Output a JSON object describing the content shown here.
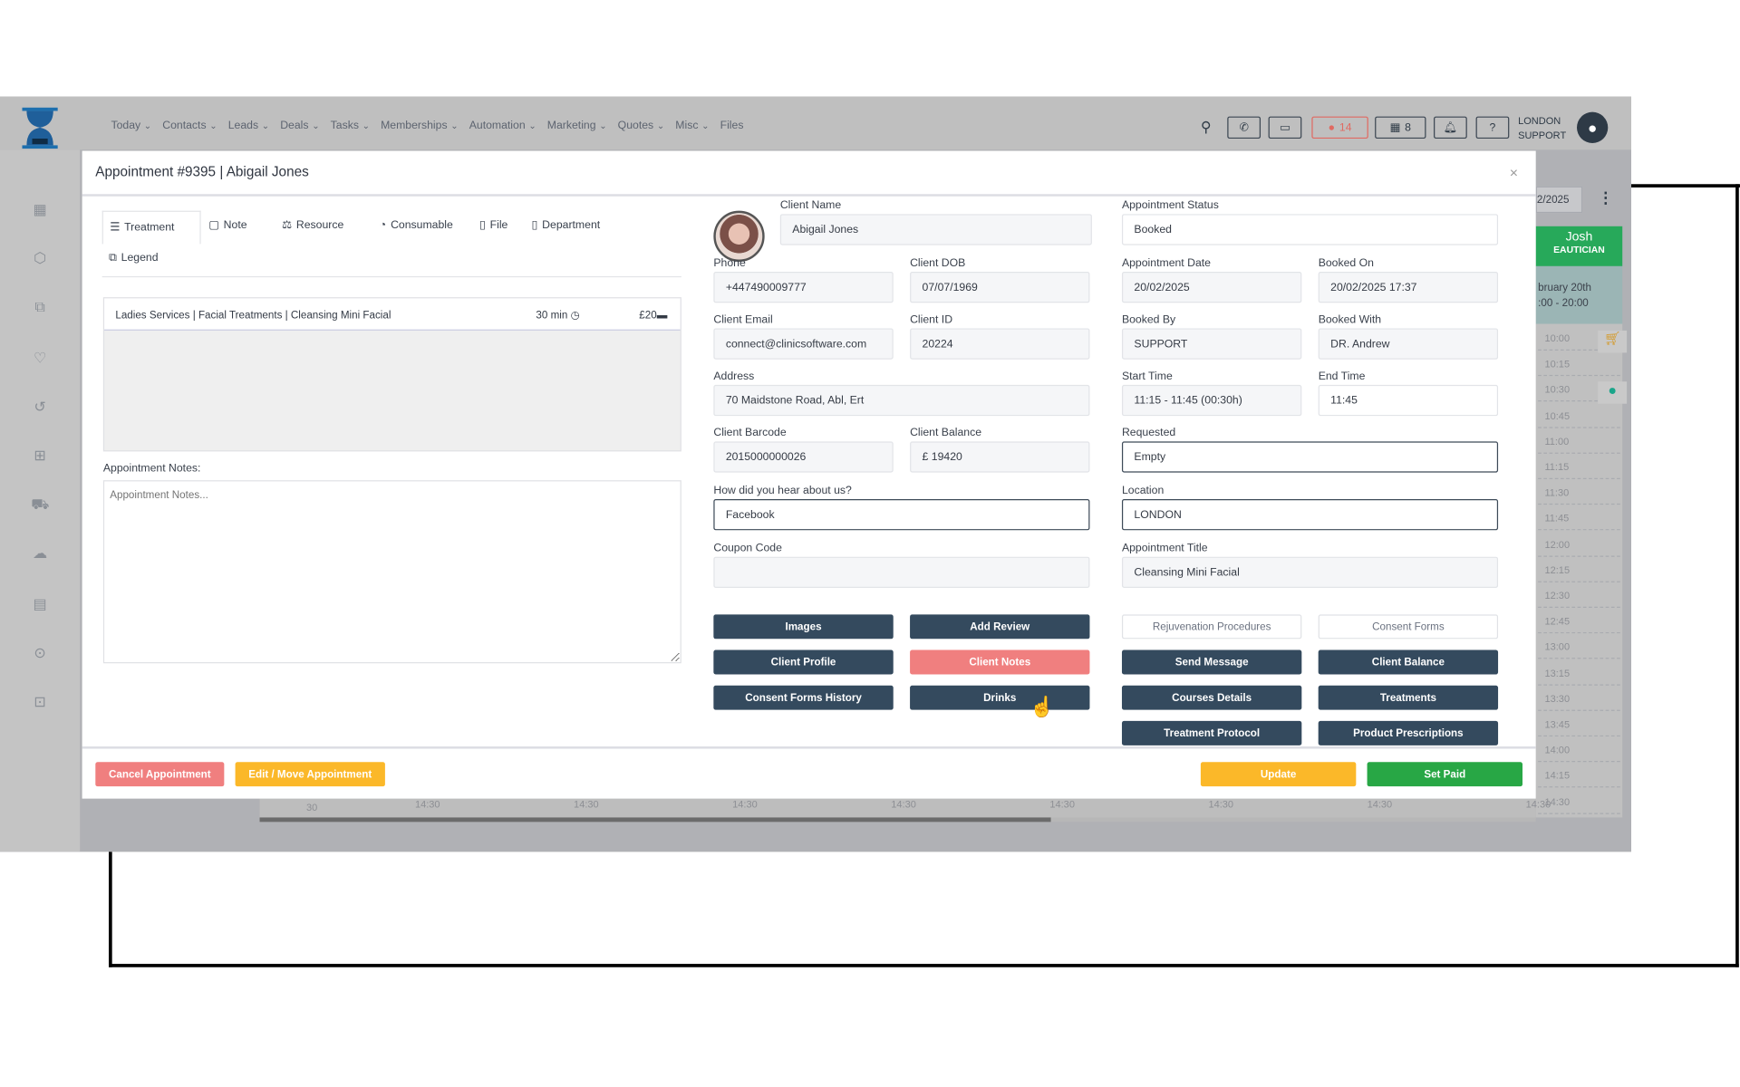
{
  "nav": {
    "items": [
      {
        "label": "Today"
      },
      {
        "label": "Contacts"
      },
      {
        "label": "Leads"
      },
      {
        "label": "Deals"
      },
      {
        "label": "Tasks"
      },
      {
        "label": "Memberships"
      },
      {
        "label": "Automation"
      },
      {
        "label": "Marketing"
      },
      {
        "label": "Quotes"
      },
      {
        "label": "Misc"
      },
      {
        "label": "Files"
      }
    ]
  },
  "topbar": {
    "messages_count": "14",
    "store_count": "8",
    "user_line1": "LONDON",
    "user_line2": "SUPPORT"
  },
  "calendar": {
    "date_partial": "2/2025",
    "staff_name": "Josh",
    "staff_role": "EAUTICIAN",
    "date_line": "bruary 20th",
    "hours": ":00 - 20:00",
    "times": [
      "10:00",
      "10:15",
      "10:30",
      "10:45",
      "11:00",
      "11:15",
      "11:30",
      "11:45",
      "12:00",
      "12:15",
      "12:30",
      "12:45",
      "13:00",
      "13:15",
      "13:30",
      "13:45",
      "14:00",
      "14:15",
      "14:30"
    ],
    "bottom_labels": [
      "30",
      "14:30",
      "14:30",
      "14:30",
      "14:30",
      "14:30",
      "14:30",
      "14:30",
      "14:30"
    ],
    "scroll_progress": 0.62
  },
  "modal": {
    "title": "Appointment #9395 | Abigail Jones",
    "close": "×",
    "tabs": [
      {
        "label": "Treatment"
      },
      {
        "label": "Note"
      },
      {
        "label": "Resource"
      },
      {
        "label": "Consumable"
      },
      {
        "label": "File"
      },
      {
        "label": "Department"
      },
      {
        "label": "Legend"
      }
    ],
    "treatment": {
      "name": "Ladies Services | Facial Treatments | Cleansing Mini Facial",
      "duration": "30 min",
      "price": "£20"
    },
    "notes": {
      "label": "Appointment Notes:",
      "placeholder": "Appointment Notes..."
    },
    "fields": {
      "client_name": {
        "label": "Client Name",
        "value": "Abigail Jones"
      },
      "phone": {
        "label": "Phone",
        "value": "+447490009777"
      },
      "dob": {
        "label": "Client DOB",
        "value": "07/07/1969"
      },
      "email": {
        "label": "Client Email",
        "value": "connect@clinicsoftware.com"
      },
      "client_id": {
        "label": "Client ID",
        "value": "20224"
      },
      "address": {
        "label": "Address",
        "value": "70  Maidstone Road, Abl, Ert"
      },
      "barcode": {
        "label": "Client Barcode",
        "value": "2015000000026"
      },
      "balance": {
        "label": "Client Balance",
        "value": "£ 19420"
      },
      "hear": {
        "label": "How did you hear about us?",
        "value": "Facebook"
      },
      "coupon": {
        "label": "Coupon Code",
        "value": ""
      },
      "status": {
        "label": "Appointment Status",
        "value": "Booked"
      },
      "appt_date": {
        "label": "Appointment Date",
        "value": "20/02/2025"
      },
      "booked_on": {
        "label": "Booked On",
        "value": "20/02/2025 17:37"
      },
      "booked_by": {
        "label": "Booked By",
        "value": "SUPPORT"
      },
      "booked_with": {
        "label": "Booked With",
        "value": "DR. Andrew"
      },
      "start": {
        "label": "Start Time",
        "value": "11:15 - 11:45 (00:30h)"
      },
      "end": {
        "label": "End Time",
        "value": "11:45"
      },
      "requested": {
        "label": "Requested",
        "value": "Empty"
      },
      "location": {
        "label": "Location",
        "value": "LONDON"
      },
      "appt_title": {
        "label": "Appointment Title",
        "value": "Cleansing Mini Facial"
      }
    },
    "buttons": {
      "images": "Images",
      "add_review": "Add Review",
      "client_profile": "Client Profile",
      "client_notes": "Client Notes",
      "consent_history": "Consent Forms History",
      "drinks": "Drinks",
      "rejuvenation": "Rejuvenation Procedures",
      "consent_forms": "Consent Forms",
      "send_message": "Send Message",
      "client_balance": "Client Balance",
      "courses": "Courses Details",
      "treatments": "Treatments",
      "protocol": "Treatment Protocol",
      "prescriptions": "Product Prescriptions"
    },
    "footer": {
      "cancel": "Cancel Appointment",
      "edit": "Edit / Move Appointment",
      "update": "Update",
      "set_paid": "Set Paid"
    }
  },
  "colors": {
    "primary": "#344a5e",
    "danger": "#f07f7f",
    "warning": "#fbb829",
    "success": "#28a745",
    "staff": "#27a95a"
  }
}
